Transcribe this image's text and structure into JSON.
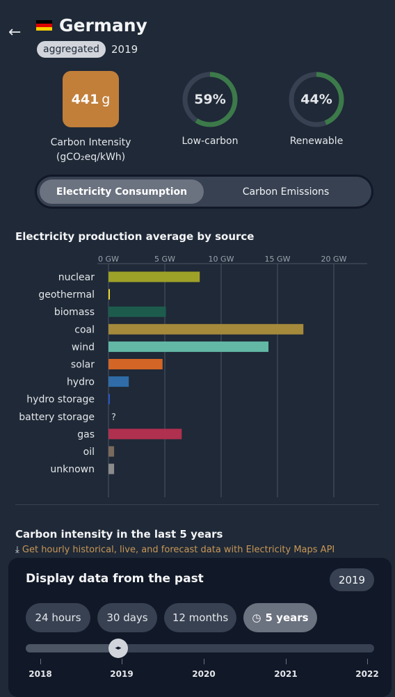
{
  "header": {
    "back_icon": "←",
    "country": "Germany",
    "badge": "aggregated",
    "year": "2019",
    "flag_colors": [
      "#000000",
      "#dd0000",
      "#ffce00"
    ]
  },
  "metrics": {
    "carbon_intensity_value": "441",
    "carbon_intensity_unit": "g",
    "carbon_intensity_label_1": "Carbon Intensity",
    "carbon_intensity_label_2": "(gCO₂eq/kWh)",
    "carbon_intensity_color": "#c17f3a",
    "low_carbon_percent": 59,
    "low_carbon_text": "59%",
    "low_carbon_label": "Low-carbon",
    "renewable_percent": 44,
    "renewable_text": "44%",
    "renewable_label": "Renewable",
    "ring_color": "#3c7a4a",
    "ring_bg": "#374151"
  },
  "toggle": {
    "active": "Electricity Consumption",
    "inactive": "Carbon Emissions"
  },
  "production": {
    "title": "Electricity production average by source",
    "unknown_marker": "?"
  },
  "chart_data": {
    "type": "bar",
    "orientation": "horizontal",
    "title": "Electricity production average by source",
    "x_ticks": [
      "0 GW",
      "5 GW",
      "10 GW",
      "15 GW",
      "20 GW"
    ],
    "xlim": [
      0,
      22.5
    ],
    "categories": [
      "nuclear",
      "geothermal",
      "biomass",
      "coal",
      "wind",
      "solar",
      "hydro",
      "hydro storage",
      "battery storage",
      "gas",
      "oil",
      "unknown"
    ],
    "values": [
      8.1,
      0.05,
      5.1,
      17.3,
      14.2,
      4.8,
      1.8,
      0.1,
      null,
      6.5,
      0.5,
      0.5
    ],
    "colors": [
      "#9ea127",
      "#ecdb2b",
      "#1d5c4d",
      "#a58a3c",
      "#62b8a5",
      "#d36526",
      "#2f6ca8",
      "#2857c4",
      "#6b7280",
      "#b0304f",
      "#7a6a5c",
      "#8b8b8b"
    ],
    "grid": true
  },
  "history": {
    "title": "Carbon intensity in the last 5 years",
    "api_icon": "⤓",
    "api_link": "Get hourly historical, live, and forecast data with Electricity Maps API"
  },
  "time_panel": {
    "title": "Display data from the past",
    "selected_year": "2019",
    "ranges": [
      "24 hours",
      "30 days",
      "12 months",
      "5 years"
    ],
    "active_range": "5 years",
    "clock_icon": "◷",
    "slider_years": [
      "2018",
      "2019",
      "2020",
      "2021",
      "2022"
    ],
    "slider_value": "2019",
    "thumb_icon": "◂▸"
  }
}
